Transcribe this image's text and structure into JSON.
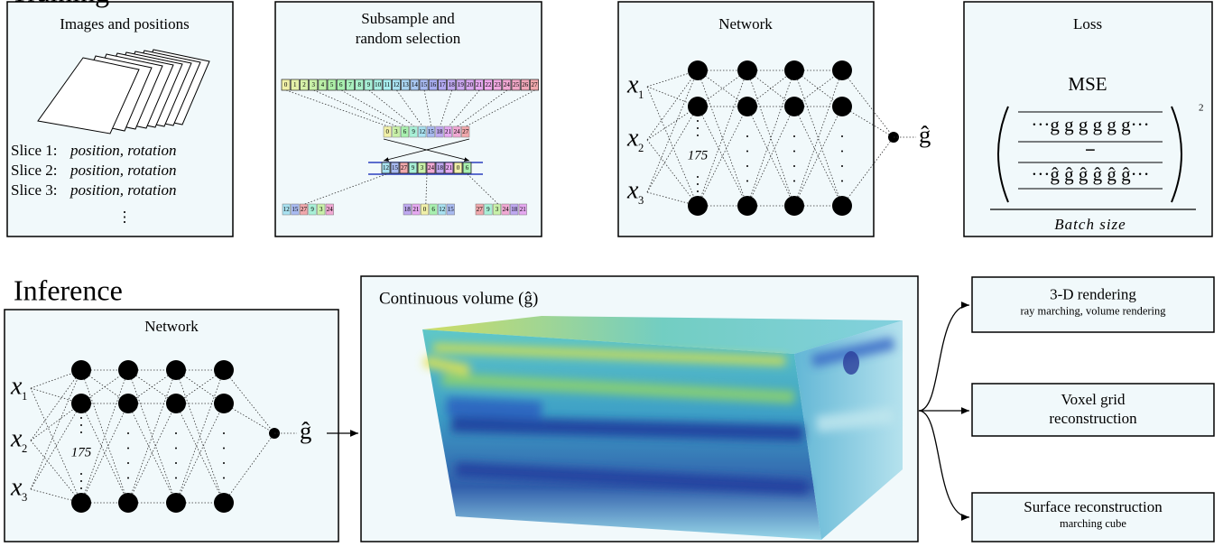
{
  "training": {
    "title": "Training",
    "images": {
      "title": "Images and positions",
      "slices": [
        {
          "label": "Slice 1:",
          "detail": "position, rotation"
        },
        {
          "label": "Slice 2:",
          "detail": "position, rotation"
        },
        {
          "label": "Slice 3:",
          "detail": "position, rotation"
        }
      ],
      "more": "⋮"
    },
    "subsample": {
      "title": [
        "Subsample and",
        "random selection"
      ],
      "all": [
        0,
        1,
        2,
        3,
        4,
        5,
        6,
        7,
        8,
        9,
        10,
        11,
        12,
        13,
        14,
        15,
        16,
        17,
        18,
        19,
        20,
        21,
        22,
        23,
        24,
        25,
        26,
        27
      ],
      "subsampled": [
        0,
        3,
        6,
        9,
        12,
        15,
        18,
        21,
        24,
        27
      ],
      "shuffled": [
        12,
        15,
        27,
        9,
        3,
        24,
        18,
        21,
        0,
        6
      ],
      "batches": [
        [
          12,
          15,
          27,
          9,
          3,
          24
        ],
        [
          18,
          21,
          0,
          6,
          12,
          15
        ],
        [
          27,
          9,
          3,
          24,
          18,
          21
        ]
      ]
    },
    "network": {
      "title": "Network",
      "inputs": [
        {
          "base": "x",
          "sub": "1"
        },
        {
          "base": "x",
          "sub": "2"
        },
        {
          "base": "x",
          "sub": "3"
        }
      ],
      "width": "175",
      "output": "ĝ"
    },
    "loss": {
      "title": "Loss",
      "name": "MSE",
      "target": "···g g g g g g···",
      "minus": "−",
      "prediction": "···ĝ ĝ ĝ ĝ ĝ ĝ···",
      "power": "2",
      "denominator": "Batch size"
    }
  },
  "inference": {
    "title": "Inference",
    "network": {
      "title": "Network",
      "inputs": [
        {
          "base": "x",
          "sub": "1"
        },
        {
          "base": "x",
          "sub": "2"
        },
        {
          "base": "x",
          "sub": "3"
        }
      ],
      "width": "175",
      "output": "ĝ"
    },
    "volume": {
      "title": "Continuous volume (ĝ)"
    },
    "outputs": [
      {
        "title": [
          "3-D rendering"
        ],
        "subtitle": "ray marching, volume rendering"
      },
      {
        "title": [
          "Voxel grid",
          "reconstruction"
        ]
      },
      {
        "title": [
          "Surface reconstruction"
        ],
        "subtitle": "marching cube"
      }
    ]
  }
}
